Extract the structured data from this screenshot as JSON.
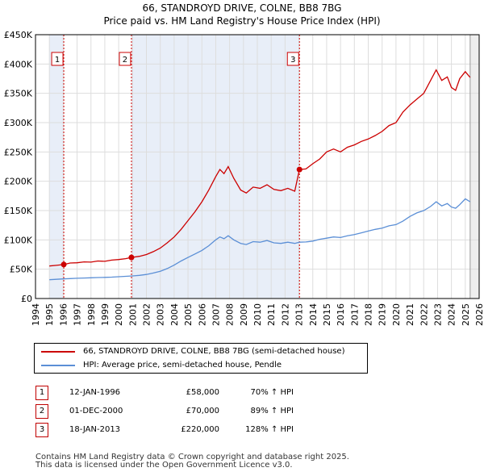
{
  "title_line1": "66, STANDROYD DRIVE, COLNE, BB8 7BG",
  "title_line2": "Price paid vs. HM Land Registry's House Price Index (HPI)",
  "chart_data": {
    "type": "line",
    "title": "66, STANDROYD DRIVE, COLNE, BB8 7BG — Price paid vs. HM Land Registry's House Price Index (HPI)",
    "xlim": [
      1994,
      2026
    ],
    "ylim": [
      0,
      450000
    ],
    "x_ticks": [
      "1994",
      "1995",
      "1996",
      "1997",
      "1998",
      "1999",
      "2000",
      "2001",
      "2002",
      "2003",
      "2004",
      "2005",
      "2006",
      "2007",
      "2008",
      "2009",
      "2010",
      "2011",
      "2012",
      "2013",
      "2014",
      "2015",
      "2016",
      "2017",
      "2018",
      "2019",
      "2020",
      "2021",
      "2022",
      "2023",
      "2024",
      "2025",
      "2026"
    ],
    "y_ticks": [
      {
        "value": 0,
        "label": "£0"
      },
      {
        "value": 50000,
        "label": "£50K"
      },
      {
        "value": 100000,
        "label": "£100K"
      },
      {
        "value": 150000,
        "label": "£150K"
      },
      {
        "value": 200000,
        "label": "£200K"
      },
      {
        "value": 250000,
        "label": "£250K"
      },
      {
        "value": 300000,
        "label": "£300K"
      },
      {
        "value": 350000,
        "label": "£350K"
      },
      {
        "value": 400000,
        "label": "£400K"
      },
      {
        "value": 450000,
        "label": "£450K"
      }
    ],
    "data_start": 1995,
    "data_end": 2025.35,
    "series": [
      {
        "name": "66, STANDROYD DRIVE, COLNE, BB8 7BG (semi-detached house)",
        "color": "#cc0000",
        "points": [
          [
            1995.0,
            55500
          ],
          [
            1995.5,
            56500
          ],
          [
            1996.04,
            58000
          ],
          [
            1996.5,
            60500
          ],
          [
            1997,
            61000
          ],
          [
            1997.5,
            62500
          ],
          [
            1998,
            62000
          ],
          [
            1998.5,
            64000
          ],
          [
            1999,
            63500
          ],
          [
            1999.5,
            65500
          ],
          [
            2000,
            66500
          ],
          [
            2000.5,
            68000
          ],
          [
            2000.92,
            70000
          ],
          [
            2001.5,
            72000
          ],
          [
            2002,
            75000
          ],
          [
            2002.5,
            80000
          ],
          [
            2003,
            86000
          ],
          [
            2003.5,
            95000
          ],
          [
            2004,
            105000
          ],
          [
            2004.5,
            118000
          ],
          [
            2005,
            133000
          ],
          [
            2005.5,
            148000
          ],
          [
            2006,
            165000
          ],
          [
            2006.5,
            185000
          ],
          [
            2007,
            208000
          ],
          [
            2007.3,
            220000
          ],
          [
            2007.6,
            213000
          ],
          [
            2007.9,
            225000
          ],
          [
            2008.3,
            205000
          ],
          [
            2008.8,
            185000
          ],
          [
            2009.2,
            180000
          ],
          [
            2009.7,
            190000
          ],
          [
            2010.2,
            188000
          ],
          [
            2010.7,
            194000
          ],
          [
            2011.2,
            186000
          ],
          [
            2011.7,
            184000
          ],
          [
            2012.2,
            188000
          ],
          [
            2012.7,
            183000
          ],
          [
            2013.04,
            220000
          ],
          [
            2013.5,
            221000
          ],
          [
            2014,
            230000
          ],
          [
            2014.5,
            238000
          ],
          [
            2015,
            250000
          ],
          [
            2015.5,
            255000
          ],
          [
            2016,
            250000
          ],
          [
            2016.5,
            258000
          ],
          [
            2017,
            262000
          ],
          [
            2017.5,
            268000
          ],
          [
            2018,
            272000
          ],
          [
            2018.5,
            278000
          ],
          [
            2019,
            285000
          ],
          [
            2019.5,
            295000
          ],
          [
            2020,
            300000
          ],
          [
            2020.5,
            318000
          ],
          [
            2021,
            330000
          ],
          [
            2021.5,
            340000
          ],
          [
            2022,
            350000
          ],
          [
            2022.5,
            372000
          ],
          [
            2022.9,
            390000
          ],
          [
            2023.3,
            372000
          ],
          [
            2023.7,
            378000
          ],
          [
            2024.0,
            360000
          ],
          [
            2024.3,
            355000
          ],
          [
            2024.6,
            375000
          ],
          [
            2025.0,
            387000
          ],
          [
            2025.35,
            377000
          ]
        ]
      },
      {
        "name": "HPI: Average price, semi-detached house, Pendle",
        "color": "#5b8fd6",
        "points": [
          [
            1995.0,
            32000
          ],
          [
            1995.5,
            32800
          ],
          [
            1996,
            33500
          ],
          [
            1996.5,
            34000
          ],
          [
            1997,
            34500
          ],
          [
            1997.5,
            35000
          ],
          [
            1998,
            35300
          ],
          [
            1998.5,
            35800
          ],
          [
            1999,
            36000
          ],
          [
            1999.5,
            36500
          ],
          [
            2000,
            37200
          ],
          [
            2000.5,
            37800
          ],
          [
            2001,
            38500
          ],
          [
            2001.5,
            39500
          ],
          [
            2002,
            41000
          ],
          [
            2002.5,
            43500
          ],
          [
            2003,
            46500
          ],
          [
            2003.5,
            51000
          ],
          [
            2004,
            57000
          ],
          [
            2004.5,
            64000
          ],
          [
            2005,
            70000
          ],
          [
            2005.5,
            76000
          ],
          [
            2006,
            82000
          ],
          [
            2006.5,
            90000
          ],
          [
            2007,
            100000
          ],
          [
            2007.3,
            105000
          ],
          [
            2007.6,
            102000
          ],
          [
            2007.9,
            107000
          ],
          [
            2008.3,
            100000
          ],
          [
            2008.8,
            94000
          ],
          [
            2009.2,
            92000
          ],
          [
            2009.7,
            97000
          ],
          [
            2010.2,
            96000
          ],
          [
            2010.7,
            99000
          ],
          [
            2011.2,
            95000
          ],
          [
            2011.7,
            94000
          ],
          [
            2012.2,
            96000
          ],
          [
            2012.7,
            94000
          ],
          [
            2013.04,
            96000
          ],
          [
            2013.5,
            96500
          ],
          [
            2014,
            98000
          ],
          [
            2014.5,
            101000
          ],
          [
            2015,
            103000
          ],
          [
            2015.5,
            105000
          ],
          [
            2016,
            104000
          ],
          [
            2016.5,
            107000
          ],
          [
            2017,
            109000
          ],
          [
            2017.5,
            112000
          ],
          [
            2018,
            115000
          ],
          [
            2018.5,
            118000
          ],
          [
            2019,
            120000
          ],
          [
            2019.5,
            124000
          ],
          [
            2020,
            126000
          ],
          [
            2020.5,
            132000
          ],
          [
            2021,
            140000
          ],
          [
            2021.5,
            146000
          ],
          [
            2022,
            150000
          ],
          [
            2022.5,
            157000
          ],
          [
            2022.9,
            165000
          ],
          [
            2023.3,
            158000
          ],
          [
            2023.7,
            162000
          ],
          [
            2024.0,
            156000
          ],
          [
            2024.3,
            154000
          ],
          [
            2024.6,
            160000
          ],
          [
            2025.0,
            170000
          ],
          [
            2025.35,
            165000
          ]
        ]
      }
    ],
    "sales": [
      {
        "id": "1",
        "x": 1996.04,
        "price": 58000
      },
      {
        "id": "2",
        "x": 2000.92,
        "price": 70000
      },
      {
        "id": "3",
        "x": 2013.04,
        "price": 220000
      }
    ]
  },
  "legend": {
    "property_label": "66, STANDROYD DRIVE, COLNE, BB8 7BG (semi-detached house)",
    "hpi_label": "HPI: Average price, semi-detached house, Pendle"
  },
  "sales_table": [
    {
      "num": "1",
      "date": "12-JAN-1996",
      "price": "£58,000",
      "hpi": "70% ↑ HPI"
    },
    {
      "num": "2",
      "date": "01-DEC-2000",
      "price": "£70,000",
      "hpi": "89% ↑ HPI"
    },
    {
      "num": "3",
      "date": "18-JAN-2013",
      "price": "£220,000",
      "hpi": "128% ↑ HPI"
    }
  ],
  "footer": {
    "line1": "Contains HM Land Registry data © Crown copyright and database right 2025.",
    "line2": "This data is licensed under the Open Government Licence v3.0."
  },
  "colors": {
    "property_line": "#cc0000",
    "hpi_line": "#5b8fd6",
    "shade": "#e8eef8",
    "grid": "#dddddd",
    "marker_border": "#cc0000"
  }
}
